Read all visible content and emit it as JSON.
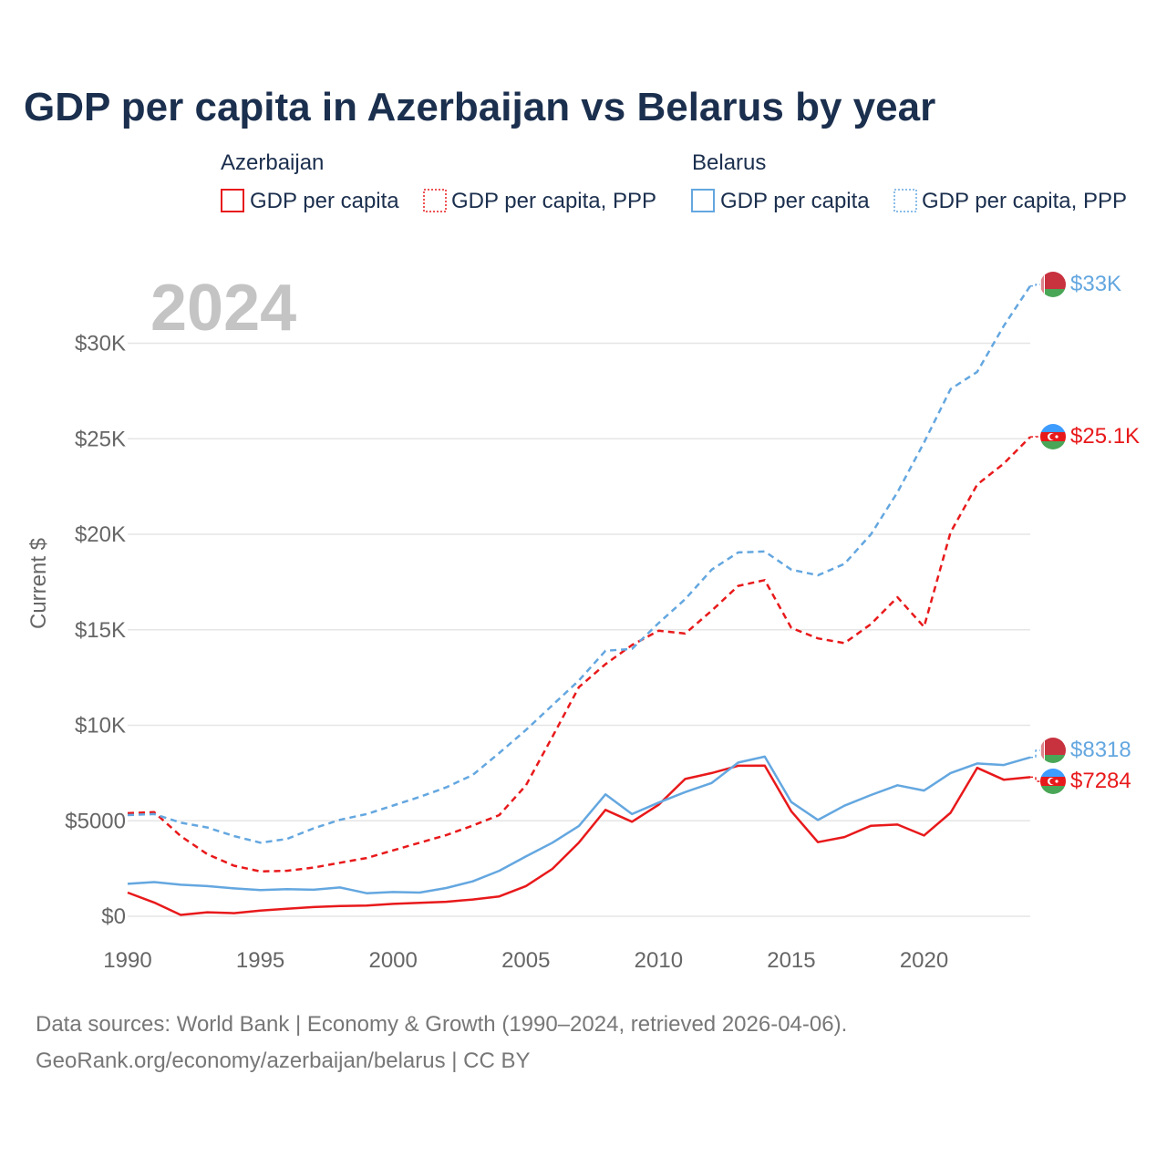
{
  "colors": {
    "azerbaijan": "#e8191b",
    "belarus": "#64a7e0",
    "title": "#1b2f4e",
    "tick": "#666666",
    "grid": "#e6e6e6",
    "year_watermark": "#c4c4c4"
  },
  "legend": {
    "azerbaijan_header": "Azerbaijan",
    "belarus_header": "Belarus",
    "az_gdp": "GDP per capita",
    "az_ppp": "GDP per capita, PPP",
    "by_gdp": "GDP per capita",
    "by_ppp": "GDP per capita, PPP"
  },
  "year_label": "2024",
  "end_labels": {
    "by_ppp": "$33K",
    "az_ppp": "$25.1K",
    "by_gdp": "$8318",
    "az_gdp": "$7284"
  },
  "flags": {
    "belarus": "belarus-flag-icon",
    "azerbaijan": "azerbaijan-flag-icon"
  },
  "source_line1": "Data sources: World Bank | Economy & Growth (1990–2024, retrieved 2026-04-06).",
  "source_line2": "GeoRank.org/economy/azerbaijan/belarus | CC BY",
  "chart_data": {
    "type": "line",
    "title": "GDP per capita in Azerbaijan vs Belarus by year",
    "xlabel": "",
    "ylabel": "Current $",
    "xlim": [
      1990,
      2024
    ],
    "ylim": [
      0,
      33000
    ],
    "x_ticks": [
      1990,
      1995,
      2000,
      2005,
      2010,
      2015,
      2020
    ],
    "x_tick_labels": [
      "1990",
      "1995",
      "2000",
      "2005",
      "2010",
      "2015",
      "2020"
    ],
    "y_ticks": [
      0,
      5000,
      10000,
      15000,
      20000,
      25000,
      30000
    ],
    "y_tick_labels": [
      "$0",
      "$5000",
      "$10K",
      "$15K",
      "$20K",
      "$25K",
      "$30K"
    ],
    "grid": true,
    "x": [
      1990,
      1991,
      1992,
      1993,
      1994,
      1995,
      1996,
      1997,
      1998,
      1999,
      2000,
      2001,
      2002,
      2003,
      2004,
      2005,
      2006,
      2007,
      2008,
      2009,
      2010,
      2011,
      2012,
      2013,
      2014,
      2015,
      2016,
      2017,
      2018,
      2019,
      2020,
      2021,
      2022,
      2023,
      2024
    ],
    "series": [
      {
        "key": "az_gdp",
        "name": "Azerbaijan GDP per capita",
        "country": "Azerbaijan",
        "style": "solid",
        "values": [
          1240,
          720,
          70,
          210,
          160,
          300,
          390,
          480,
          540,
          560,
          650,
          700,
          760,
          880,
          1040,
          1580,
          2480,
          3860,
          5570,
          4950,
          5840,
          7190,
          7500,
          7880,
          7890,
          5500,
          3880,
          4150,
          4740,
          4800,
          4230,
          5420,
          7770,
          7150,
          7284
        ]
      },
      {
        "key": "az_ppp",
        "name": "Azerbaijan GDP per capita, PPP",
        "country": "Azerbaijan",
        "style": "dashed",
        "values": [
          5400,
          5450,
          4200,
          3250,
          2650,
          2350,
          2380,
          2550,
          2800,
          3050,
          3450,
          3850,
          4250,
          4750,
          5300,
          6850,
          9400,
          12000,
          13200,
          14200,
          14950,
          14800,
          16000,
          17300,
          17600,
          15100,
          14550,
          14300,
          15300,
          16700,
          15150,
          20100,
          22600,
          23700,
          25100
        ]
      },
      {
        "key": "by_gdp",
        "name": "Belarus GDP per capita",
        "country": "Belarus",
        "style": "solid",
        "values": [
          1700,
          1790,
          1650,
          1580,
          1460,
          1370,
          1420,
          1390,
          1510,
          1210,
          1270,
          1240,
          1480,
          1830,
          2380,
          3130,
          3850,
          4730,
          6380,
          5350,
          5950,
          6500,
          6980,
          8050,
          8360,
          5980,
          5040,
          5790,
          6350,
          6860,
          6580,
          7500,
          8000,
          7920,
          8318
        ]
      },
      {
        "key": "by_ppp",
        "name": "Belarus GDP per capita, PPP",
        "country": "Belarus",
        "style": "dashed",
        "values": [
          5300,
          5350,
          4900,
          4650,
          4200,
          3850,
          4050,
          4600,
          5050,
          5350,
          5800,
          6250,
          6750,
          7400,
          8550,
          9750,
          11050,
          12350,
          13900,
          14000,
          15350,
          16600,
          18150,
          19050,
          19100,
          18150,
          17850,
          18450,
          20000,
          22200,
          24800,
          27600,
          28500,
          30900,
          33000
        ]
      }
    ]
  }
}
